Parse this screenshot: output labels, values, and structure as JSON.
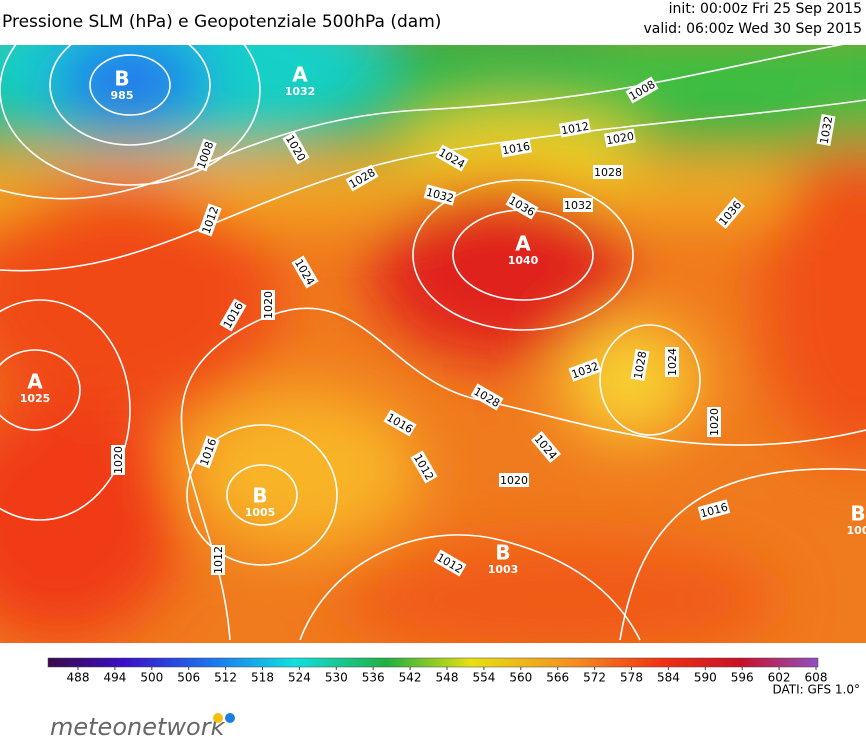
{
  "header": {
    "title": "Pressione SLM (hPa) e Geopotenziale 500hPa (dam)",
    "init": "init: 00:00z Fri 25 Sep 2015",
    "valid": "valid: 06:00z Wed 30 Sep 2015"
  },
  "pressure_centers": [
    {
      "symbol": "B",
      "value": 985
    },
    {
      "symbol": "A",
      "value": 1032
    },
    {
      "symbol": "A",
      "value": 1040
    },
    {
      "symbol": "A",
      "value": 1025
    },
    {
      "symbol": "B",
      "value": 1005
    },
    {
      "symbol": "B",
      "value": 1003
    },
    {
      "symbol": "B",
      "value": 100
    }
  ],
  "isobar_labels": [
    1008,
    1020,
    1012,
    1016,
    1020,
    1024,
    1028,
    1024,
    1032,
    1016,
    1012,
    1020,
    1008,
    1032,
    1028,
    1036,
    1032,
    1036,
    1032,
    1028,
    1024,
    1028,
    1016,
    1012,
    1024,
    1020,
    1020,
    1016,
    1020,
    1016,
    1012,
    1012
  ],
  "colorbar": {
    "ticks": [
      488,
      494,
      500,
      506,
      512,
      518,
      524,
      530,
      536,
      542,
      548,
      554,
      560,
      566,
      572,
      578,
      584,
      590,
      596,
      602,
      608
    ]
  },
  "footer": {
    "logo": "meteonetwork",
    "source": "DATI: GFS 1.0°"
  }
}
